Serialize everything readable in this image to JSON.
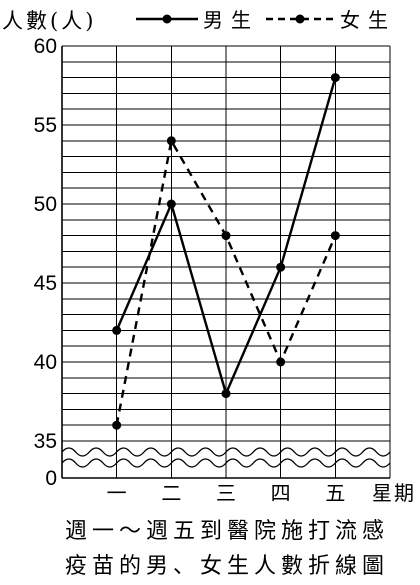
{
  "chart_data": {
    "type": "line",
    "ylabel": "人數(人)",
    "xlabel": "星期",
    "categories": [
      "一",
      "二",
      "三",
      "四",
      "五"
    ],
    "series": [
      {
        "name": "男生",
        "values": [
          42,
          50,
          38,
          46,
          58
        ],
        "dashed": false
      },
      {
        "name": "女生",
        "values": [
          36,
          54,
          48,
          40,
          48
        ],
        "dashed": true
      }
    ],
    "yticks": [
      60,
      55,
      50,
      45,
      40,
      35,
      0
    ],
    "ylim": [
      35,
      60
    ],
    "axis_break": [
      0,
      35
    ],
    "grid": true,
    "grid_step": 1,
    "legend_position": "top",
    "line_color": "#000000",
    "title_lines": [
      "週一～週五到醫院施打流感",
      "疫苗的男、女生人數折線圖"
    ]
  }
}
